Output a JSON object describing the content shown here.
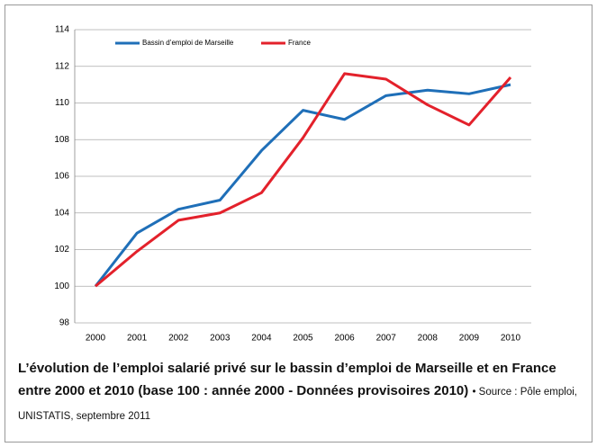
{
  "chart_data": {
    "type": "line",
    "caption": "L’évolution de l’emploi salarié privé sur le bassin d’emploi de Marseille et en France entre 2000 et 2010 (base 100 : année 2000 - Données provisoires 2010)",
    "source": "• Source : Pôle emploi, UNISTATIS, septembre 2011",
    "categories": [
      "2000",
      "2001",
      "2002",
      "2003",
      "2004",
      "2005",
      "2006",
      "2007",
      "2008",
      "2009",
      "2010"
    ],
    "series": [
      {
        "name": "Bassin d’emploi de Marseille",
        "color": "#1f6fb8",
        "values": [
          100,
          102.9,
          104.2,
          104.7,
          107.4,
          109.6,
          109.1,
          110.4,
          110.7,
          110.5,
          111.0
        ]
      },
      {
        "name": "France",
        "color": "#e3212b",
        "values": [
          100,
          101.9,
          103.6,
          104.0,
          105.1,
          108.1,
          111.6,
          111.3,
          109.9,
          108.8,
          111.4
        ]
      }
    ],
    "ylim": [
      98,
      114
    ],
    "yticks": [
      98,
      100,
      102,
      104,
      106,
      108,
      110,
      112,
      114
    ],
    "grid": true,
    "legend": "top"
  }
}
